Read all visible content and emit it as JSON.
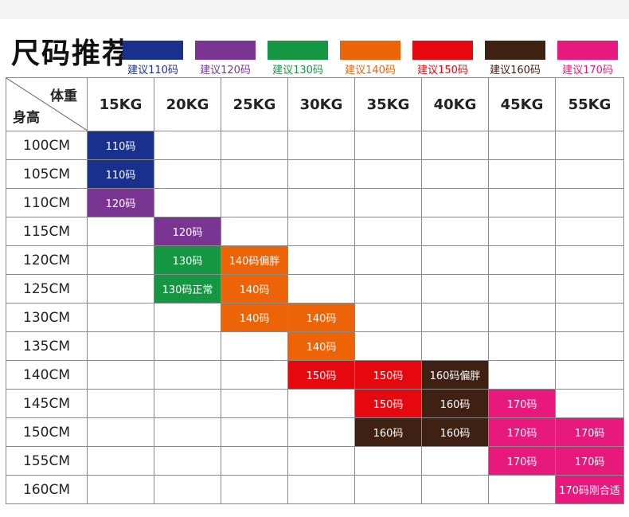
{
  "title": "尺码推荐",
  "legend": [
    {
      "label": "建议110码",
      "color": "#19308d"
    },
    {
      "label": "建议120码",
      "color": "#7a3593"
    },
    {
      "label": "建议130码",
      "color": "#159642"
    },
    {
      "label": "建议140码",
      "color": "#ec6308"
    },
    {
      "label": "建议150码",
      "color": "#e5080f"
    },
    {
      "label": "建议160码",
      "color": "#3e2113"
    },
    {
      "label": "建议170码",
      "color": "#e8197c"
    }
  ],
  "table": {
    "corner_weight": "体重",
    "corner_height": "身高",
    "weights": [
      "15KG",
      "20KG",
      "25KG",
      "30KG",
      "35KG",
      "40KG",
      "45KG",
      "55KG"
    ],
    "rows": [
      {
        "height": "100CM",
        "cells": [
          {
            "text": "110码",
            "color": "#19308d"
          },
          null,
          null,
          null,
          null,
          null,
          null,
          null
        ]
      },
      {
        "height": "105CM",
        "cells": [
          {
            "text": "110码",
            "color": "#19308d"
          },
          null,
          null,
          null,
          null,
          null,
          null,
          null
        ]
      },
      {
        "height": "110CM",
        "cells": [
          {
            "text": "120码",
            "color": "#7a3593"
          },
          null,
          null,
          null,
          null,
          null,
          null,
          null
        ]
      },
      {
        "height": "115CM",
        "cells": [
          null,
          {
            "text": "120码",
            "color": "#7a3593"
          },
          null,
          null,
          null,
          null,
          null,
          null
        ]
      },
      {
        "height": "120CM",
        "cells": [
          null,
          {
            "text": "130码",
            "color": "#159642"
          },
          {
            "text": "140码偏胖",
            "color": "#ec6308"
          },
          null,
          null,
          null,
          null,
          null
        ]
      },
      {
        "height": "125CM",
        "cells": [
          null,
          {
            "text": "130码正常",
            "color": "#159642"
          },
          {
            "text": "140码",
            "color": "#ec6308"
          },
          null,
          null,
          null,
          null,
          null
        ]
      },
      {
        "height": "130CM",
        "cells": [
          null,
          null,
          {
            "text": "140码",
            "color": "#ec6308"
          },
          {
            "text": "140码",
            "color": "#ec6308"
          },
          null,
          null,
          null,
          null
        ]
      },
      {
        "height": "135CM",
        "cells": [
          null,
          null,
          null,
          {
            "text": "140码",
            "color": "#ec6308"
          },
          null,
          null,
          null,
          null
        ]
      },
      {
        "height": "140CM",
        "cells": [
          null,
          null,
          null,
          {
            "text": "150码",
            "color": "#e5080f"
          },
          {
            "text": "150码",
            "color": "#e5080f"
          },
          {
            "text": "160码偏胖",
            "color": "#3e2113"
          },
          null,
          null
        ]
      },
      {
        "height": "145CM",
        "cells": [
          null,
          null,
          null,
          null,
          {
            "text": "150码",
            "color": "#e5080f"
          },
          {
            "text": "160码",
            "color": "#3e2113"
          },
          {
            "text": "170码",
            "color": "#e8197c"
          },
          null
        ]
      },
      {
        "height": "150CM",
        "cells": [
          null,
          null,
          null,
          null,
          {
            "text": "160码",
            "color": "#3e2113"
          },
          {
            "text": "160码",
            "color": "#3e2113"
          },
          {
            "text": "170码",
            "color": "#e8197c"
          },
          {
            "text": "170码",
            "color": "#e8197c"
          }
        ]
      },
      {
        "height": "155CM",
        "cells": [
          null,
          null,
          null,
          null,
          null,
          null,
          {
            "text": "170码",
            "color": "#e8197c"
          },
          {
            "text": "170码",
            "color": "#e8197c"
          }
        ]
      },
      {
        "height": "160CM",
        "cells": [
          null,
          null,
          null,
          null,
          null,
          null,
          null,
          {
            "text": "170码刚合适",
            "color": "#e8197c"
          }
        ]
      }
    ]
  }
}
